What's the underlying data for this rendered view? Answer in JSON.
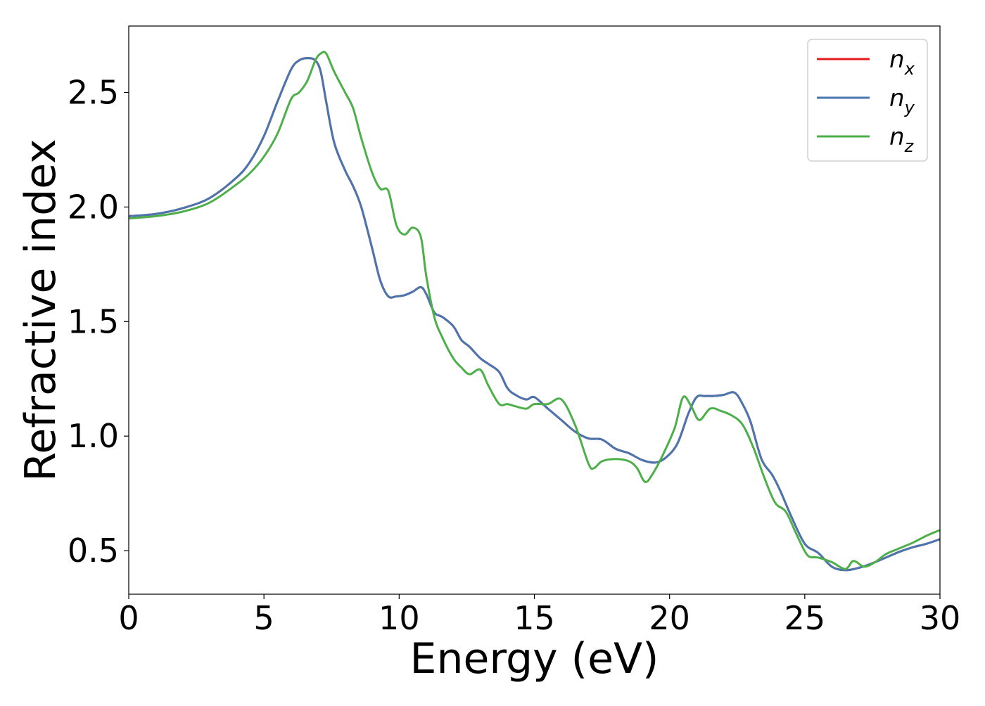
{
  "chart_data": {
    "type": "line",
    "xlabel": "Energy (eV)",
    "ylabel": "Refractive index",
    "xlim": [
      0,
      30
    ],
    "ylim": [
      0.31,
      2.79
    ],
    "xticks": [
      0,
      5,
      10,
      15,
      20,
      25,
      30
    ],
    "xtick_labels": [
      "0",
      "5",
      "10",
      "15",
      "20",
      "25",
      "30"
    ],
    "yticks": [
      0.5,
      1.0,
      1.5,
      2.0,
      2.5
    ],
    "ytick_labels": [
      "0.5",
      "1.0",
      "1.5",
      "2.0",
      "2.5"
    ],
    "grid": false,
    "legend_position": "top-right",
    "series": [
      {
        "name": "n",
        "subscript": "x",
        "color": "#e41a1c",
        "x": [
          0,
          1,
          2,
          3,
          4,
          4.5,
          5,
          5.5,
          6,
          6.3,
          6.6,
          6.9,
          7.1,
          7.3,
          7.6,
          8,
          8.3,
          8.6,
          9,
          9.3,
          9.6,
          9.9,
          10.2,
          10.5,
          10.8,
          11,
          11.3,
          11.6,
          12,
          12.3,
          12.6,
          13,
          13.3,
          13.7,
          14,
          14.3,
          14.7,
          15,
          15.5,
          16,
          16.5,
          17,
          17.5,
          18,
          18.5,
          19,
          19.5,
          19.9,
          20.3,
          20.7,
          21,
          21.3,
          21.6,
          22,
          22.4,
          22.7,
          23,
          23.4,
          23.8,
          24.1,
          24.5,
          25,
          25.5,
          26,
          26.5,
          27,
          27.5,
          28,
          28.5,
          29,
          29.5,
          30
        ],
        "values": [
          1.96,
          1.97,
          1.995,
          2.04,
          2.13,
          2.2,
          2.31,
          2.46,
          2.6,
          2.64,
          2.65,
          2.64,
          2.59,
          2.46,
          2.28,
          2.16,
          2.09,
          2.0,
          1.82,
          1.68,
          1.61,
          1.61,
          1.615,
          1.63,
          1.65,
          1.62,
          1.54,
          1.52,
          1.48,
          1.42,
          1.39,
          1.34,
          1.315,
          1.28,
          1.21,
          1.18,
          1.16,
          1.17,
          1.12,
          1.07,
          1.02,
          0.99,
          0.985,
          0.945,
          0.925,
          0.895,
          0.885,
          0.91,
          0.97,
          1.1,
          1.17,
          1.175,
          1.175,
          1.18,
          1.19,
          1.14,
          1.06,
          0.9,
          0.83,
          0.76,
          0.65,
          0.53,
          0.49,
          0.43,
          0.415,
          0.425,
          0.445,
          0.47,
          0.495,
          0.515,
          0.53,
          0.55
        ]
      },
      {
        "name": "n",
        "subscript": "y",
        "color": "#4a76b0",
        "x": [
          0,
          1,
          2,
          3,
          4,
          4.5,
          5,
          5.5,
          6,
          6.3,
          6.6,
          6.9,
          7.1,
          7.3,
          7.6,
          8,
          8.3,
          8.6,
          9,
          9.3,
          9.6,
          9.9,
          10.2,
          10.5,
          10.8,
          11,
          11.3,
          11.6,
          12,
          12.3,
          12.6,
          13,
          13.3,
          13.7,
          14,
          14.3,
          14.7,
          15,
          15.5,
          16,
          16.5,
          17,
          17.5,
          18,
          18.5,
          19,
          19.5,
          19.9,
          20.3,
          20.7,
          21,
          21.3,
          21.6,
          22,
          22.4,
          22.7,
          23,
          23.4,
          23.8,
          24.1,
          24.5,
          25,
          25.5,
          26,
          26.5,
          27,
          27.5,
          28,
          28.5,
          29,
          29.5,
          30
        ],
        "values": [
          1.96,
          1.97,
          1.995,
          2.04,
          2.13,
          2.2,
          2.31,
          2.46,
          2.6,
          2.64,
          2.65,
          2.64,
          2.59,
          2.46,
          2.28,
          2.16,
          2.09,
          2.0,
          1.82,
          1.68,
          1.61,
          1.61,
          1.615,
          1.63,
          1.65,
          1.62,
          1.54,
          1.52,
          1.48,
          1.42,
          1.39,
          1.34,
          1.315,
          1.28,
          1.21,
          1.18,
          1.16,
          1.17,
          1.12,
          1.07,
          1.02,
          0.99,
          0.985,
          0.945,
          0.925,
          0.895,
          0.885,
          0.91,
          0.97,
          1.1,
          1.17,
          1.175,
          1.175,
          1.18,
          1.19,
          1.14,
          1.06,
          0.9,
          0.83,
          0.76,
          0.65,
          0.53,
          0.49,
          0.43,
          0.415,
          0.425,
          0.445,
          0.47,
          0.495,
          0.515,
          0.53,
          0.55
        ]
      },
      {
        "name": "n",
        "subscript": "z",
        "color": "#4daf4a",
        "x": [
          0,
          1,
          2,
          3,
          4,
          4.5,
          5,
          5.5,
          6,
          6.3,
          6.6,
          6.9,
          7.1,
          7.3,
          7.6,
          8,
          8.3,
          8.6,
          9,
          9.3,
          9.6,
          9.9,
          10.2,
          10.5,
          10.8,
          11,
          11.3,
          11.6,
          12,
          12.3,
          12.6,
          13,
          13.3,
          13.7,
          14,
          14.3,
          14.7,
          15,
          15.5,
          16,
          16.5,
          17,
          17.2,
          17.5,
          18,
          18.5,
          18.8,
          19.1,
          19.4,
          19.8,
          20.2,
          20.5,
          20.8,
          21.1,
          21.5,
          21.9,
          22.3,
          22.7,
          23.1,
          23.5,
          23.9,
          24.3,
          24.7,
          25.1,
          25.5,
          26,
          26.5,
          26.8,
          27.2,
          27.6,
          28,
          28.5,
          29,
          29.5,
          30
        ],
        "values": [
          1.95,
          1.96,
          1.98,
          2.02,
          2.1,
          2.15,
          2.22,
          2.32,
          2.47,
          2.5,
          2.55,
          2.64,
          2.67,
          2.67,
          2.59,
          2.5,
          2.43,
          2.3,
          2.15,
          2.08,
          2.07,
          1.92,
          1.88,
          1.91,
          1.87,
          1.7,
          1.52,
          1.43,
          1.34,
          1.3,
          1.27,
          1.29,
          1.22,
          1.14,
          1.14,
          1.13,
          1.12,
          1.14,
          1.14,
          1.16,
          1.05,
          0.88,
          0.86,
          0.89,
          0.9,
          0.89,
          0.86,
          0.8,
          0.84,
          0.93,
          1.04,
          1.17,
          1.13,
          1.07,
          1.12,
          1.11,
          1.09,
          1.05,
          0.95,
          0.82,
          0.71,
          0.67,
          0.57,
          0.48,
          0.47,
          0.45,
          0.42,
          0.455,
          0.43,
          0.45,
          0.485,
          0.51,
          0.535,
          0.565,
          0.59
        ]
      }
    ]
  }
}
